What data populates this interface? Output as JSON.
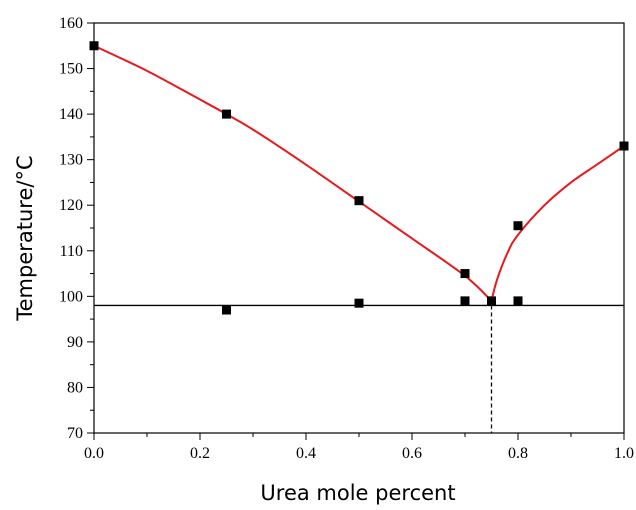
{
  "chart_data": {
    "type": "scatter",
    "xlabel": "Urea mole percent",
    "ylabel": "Temperature/°C",
    "xlim": [
      0.0,
      1.0
    ],
    "ylim": [
      70,
      160
    ],
    "x_ticks": [
      0.0,
      0.2,
      0.4,
      0.6,
      0.8,
      1.0
    ],
    "x_tick_labels": [
      "0.0",
      "0.2",
      "0.4",
      "0.6",
      "0.8",
      "1.0"
    ],
    "y_ticks": [
      70,
      80,
      90,
      100,
      110,
      120,
      130,
      140,
      150,
      160
    ],
    "y_tick_labels": [
      "70",
      "80",
      "90",
      "100",
      "110",
      "120",
      "130",
      "140",
      "150",
      "160"
    ],
    "grid": false,
    "points": [
      {
        "x": 0.0,
        "y": 155
      },
      {
        "x": 0.25,
        "y": 140
      },
      {
        "x": 0.5,
        "y": 121
      },
      {
        "x": 0.7,
        "y": 105
      },
      {
        "x": 0.75,
        "y": 99
      },
      {
        "x": 0.8,
        "y": 115.5
      },
      {
        "x": 1.0,
        "y": 133
      },
      {
        "x": 0.25,
        "y": 97
      },
      {
        "x": 0.5,
        "y": 98.5
      },
      {
        "x": 0.7,
        "y": 99
      },
      {
        "x": 0.8,
        "y": 99
      }
    ],
    "liquidus_left": {
      "color": "#e8191e",
      "x": [
        0.0,
        0.1,
        0.2,
        0.25,
        0.3,
        0.4,
        0.5,
        0.6,
        0.7,
        0.75
      ],
      "y": [
        155,
        149.5,
        143.2,
        140,
        136.6,
        128.9,
        120.8,
        112.7,
        104.5,
        99
      ]
    },
    "liquidus_right": {
      "color": "#e8191e",
      "x": [
        0.75,
        0.76,
        0.78,
        0.8,
        0.85,
        0.9,
        0.95,
        1.0
      ],
      "y": [
        99,
        103.5,
        109.5,
        113.5,
        120,
        125,
        129,
        133
      ]
    },
    "eutectic_line": {
      "y": 98,
      "color": "#000000"
    },
    "eutectic_marker": {
      "x": 0.75,
      "style": "dashed"
    }
  }
}
